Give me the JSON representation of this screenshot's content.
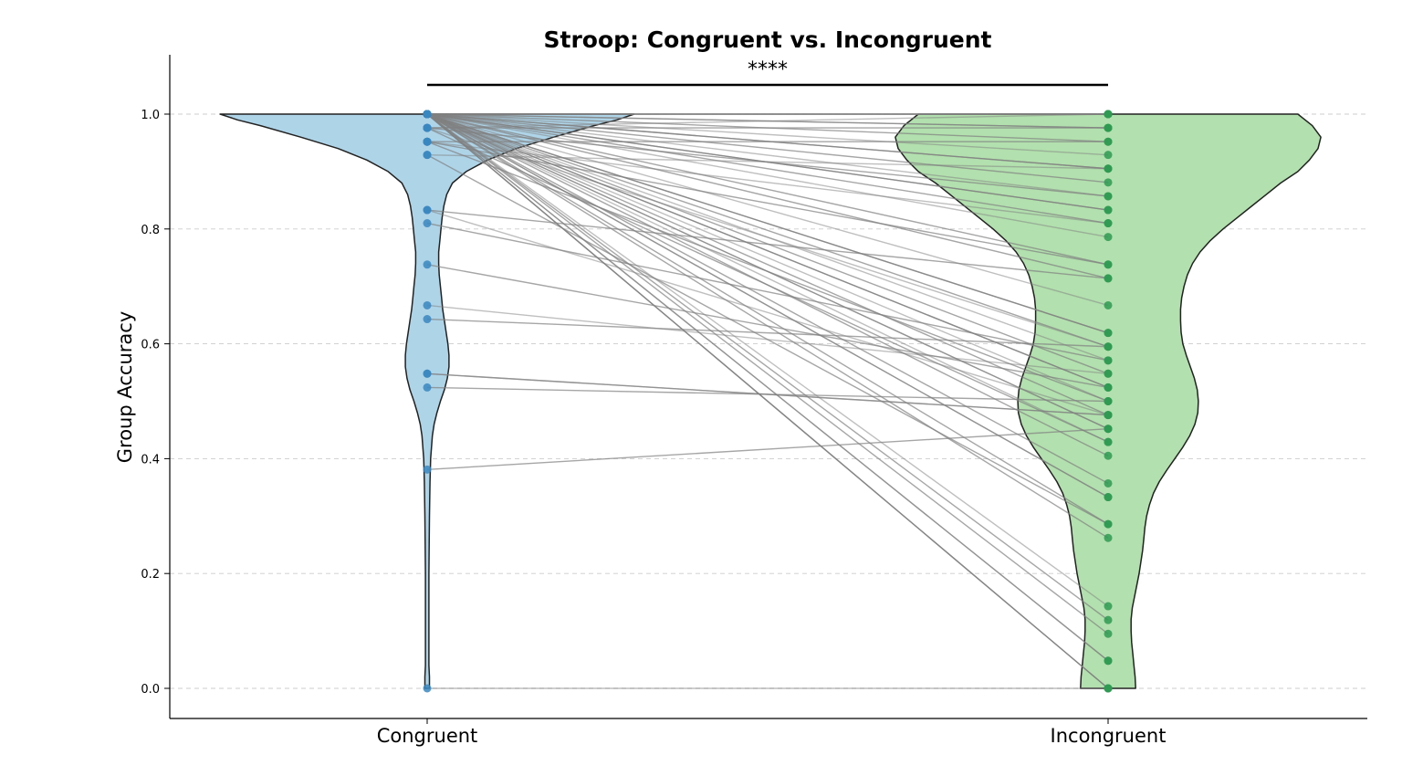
{
  "chart_data": {
    "type": "violin",
    "title": "Stroop: Congruent vs. Incongruent",
    "xlabel": "",
    "ylabel": "Group Accuracy",
    "categories": [
      "Congruent",
      "Incongruent"
    ],
    "ylim": [
      -0.05,
      1.1
    ],
    "yticks": [
      "0.0",
      "0.2",
      "0.4",
      "0.6",
      "0.8",
      "1.0"
    ],
    "grid": "horizontal dashed",
    "significance": "****",
    "colors": {
      "congruent_fill": "#aed4e8",
      "incongruent_fill": "#b2e0ae",
      "congruent_point": "#3a87c0",
      "incongruent_point": "#2e9a52",
      "pair_line": "#808080"
    },
    "pairs": [
      [
        1.0,
        1.0
      ],
      [
        1.0,
        1.0
      ],
      [
        1.0,
        1.0
      ],
      [
        1.0,
        1.0
      ],
      [
        1.0,
        0.976
      ],
      [
        1.0,
        0.952
      ],
      [
        1.0,
        0.929
      ],
      [
        1.0,
        0.905
      ],
      [
        1.0,
        0.881
      ],
      [
        1.0,
        0.857
      ],
      [
        1.0,
        0.833
      ],
      [
        1.0,
        0.81
      ],
      [
        1.0,
        0.786
      ],
      [
        1.0,
        0.738
      ],
      [
        1.0,
        0.714
      ],
      [
        1.0,
        0.667
      ],
      [
        1.0,
        0.619
      ],
      [
        1.0,
        0.595
      ],
      [
        1.0,
        0.571
      ],
      [
        1.0,
        0.548
      ],
      [
        1.0,
        0.524
      ],
      [
        1.0,
        0.5
      ],
      [
        1.0,
        0.476
      ],
      [
        1.0,
        0.452
      ],
      [
        1.0,
        0.429
      ],
      [
        1.0,
        0.405
      ],
      [
        1.0,
        0.357
      ],
      [
        1.0,
        0.333
      ],
      [
        1.0,
        0.286
      ],
      [
        1.0,
        0.262
      ],
      [
        1.0,
        0.143
      ],
      [
        1.0,
        0.119
      ],
      [
        1.0,
        0.095
      ],
      [
        1.0,
        0.048
      ],
      [
        1.0,
        0.0
      ],
      [
        1.0,
        0.0
      ],
      [
        1.0,
        0.0
      ],
      [
        1.0,
        0.619
      ],
      [
        1.0,
        0.524
      ],
      [
        1.0,
        0.452
      ],
      [
        1.0,
        0.333
      ],
      [
        1.0,
        0.048
      ],
      [
        1.0,
        0.976
      ],
      [
        1.0,
        0.905
      ],
      [
        1.0,
        0.833
      ],
      [
        0.976,
        1.0
      ],
      [
        0.976,
        0.976
      ],
      [
        0.976,
        0.857
      ],
      [
        0.976,
        0.595
      ],
      [
        0.976,
        0.429
      ],
      [
        0.952,
        0.952
      ],
      [
        0.952,
        0.81
      ],
      [
        0.952,
        0.738
      ],
      [
        0.952,
        0.5
      ],
      [
        0.929,
        0.905
      ],
      [
        0.929,
        0.286
      ],
      [
        0.833,
        0.714
      ],
      [
        0.833,
        0.476
      ],
      [
        0.81,
        0.571
      ],
      [
        0.738,
        0.524
      ],
      [
        0.667,
        0.548
      ],
      [
        0.643,
        0.595
      ],
      [
        0.548,
        0.476
      ],
      [
        0.548,
        0.476
      ],
      [
        0.524,
        0.5
      ],
      [
        0.381,
        0.452
      ],
      [
        0.0,
        0.0
      ]
    ],
    "violins": {
      "congruent": [
        [
          1.0,
          0.36
        ],
        [
          0.99,
          0.33
        ],
        [
          0.98,
          0.29
        ],
        [
          0.96,
          0.22
        ],
        [
          0.94,
          0.155
        ],
        [
          0.92,
          0.105
        ],
        [
          0.9,
          0.068
        ],
        [
          0.88,
          0.044
        ],
        [
          0.86,
          0.034
        ],
        [
          0.84,
          0.029
        ],
        [
          0.82,
          0.026
        ],
        [
          0.8,
          0.024
        ],
        [
          0.78,
          0.022
        ],
        [
          0.76,
          0.02
        ],
        [
          0.74,
          0.02
        ],
        [
          0.72,
          0.021
        ],
        [
          0.7,
          0.023
        ],
        [
          0.68,
          0.025
        ],
        [
          0.66,
          0.027
        ],
        [
          0.64,
          0.03
        ],
        [
          0.62,
          0.033
        ],
        [
          0.6,
          0.036
        ],
        [
          0.58,
          0.038
        ],
        [
          0.56,
          0.038
        ],
        [
          0.54,
          0.035
        ],
        [
          0.52,
          0.03
        ],
        [
          0.5,
          0.023
        ],
        [
          0.48,
          0.017
        ],
        [
          0.46,
          0.012
        ],
        [
          0.44,
          0.009
        ],
        [
          0.4,
          0.006
        ],
        [
          0.36,
          0.005
        ],
        [
          0.3,
          0.004
        ],
        [
          0.2,
          0.003
        ],
        [
          0.1,
          0.003
        ],
        [
          0.04,
          0.003
        ],
        [
          0.02,
          0.004
        ],
        [
          0.0,
          0.004
        ]
      ],
      "incongruent": [
        [
          1.0,
          0.33
        ],
        [
          0.98,
          0.355
        ],
        [
          0.96,
          0.37
        ],
        [
          0.94,
          0.365
        ],
        [
          0.92,
          0.35
        ],
        [
          0.9,
          0.33
        ],
        [
          0.88,
          0.3
        ],
        [
          0.86,
          0.275
        ],
        [
          0.84,
          0.25
        ],
        [
          0.82,
          0.225
        ],
        [
          0.8,
          0.2
        ],
        [
          0.78,
          0.178
        ],
        [
          0.76,
          0.16
        ],
        [
          0.74,
          0.147
        ],
        [
          0.72,
          0.138
        ],
        [
          0.7,
          0.132
        ],
        [
          0.68,
          0.128
        ],
        [
          0.66,
          0.126
        ],
        [
          0.64,
          0.126
        ],
        [
          0.62,
          0.127
        ],
        [
          0.6,
          0.13
        ],
        [
          0.58,
          0.136
        ],
        [
          0.56,
          0.143
        ],
        [
          0.54,
          0.15
        ],
        [
          0.52,
          0.155
        ],
        [
          0.5,
          0.157
        ],
        [
          0.48,
          0.156
        ],
        [
          0.46,
          0.151
        ],
        [
          0.44,
          0.142
        ],
        [
          0.42,
          0.13
        ],
        [
          0.4,
          0.116
        ],
        [
          0.38,
          0.102
        ],
        [
          0.36,
          0.089
        ],
        [
          0.34,
          0.079
        ],
        [
          0.32,
          0.072
        ],
        [
          0.3,
          0.067
        ],
        [
          0.28,
          0.064
        ],
        [
          0.26,
          0.062
        ],
        [
          0.24,
          0.06
        ],
        [
          0.22,
          0.057
        ],
        [
          0.2,
          0.054
        ],
        [
          0.18,
          0.05
        ],
        [
          0.16,
          0.046
        ],
        [
          0.14,
          0.042
        ],
        [
          0.12,
          0.04
        ],
        [
          0.1,
          0.04
        ],
        [
          0.08,
          0.041
        ],
        [
          0.06,
          0.043
        ],
        [
          0.04,
          0.045
        ],
        [
          0.02,
          0.047
        ],
        [
          0.0,
          0.048
        ]
      ]
    }
  }
}
